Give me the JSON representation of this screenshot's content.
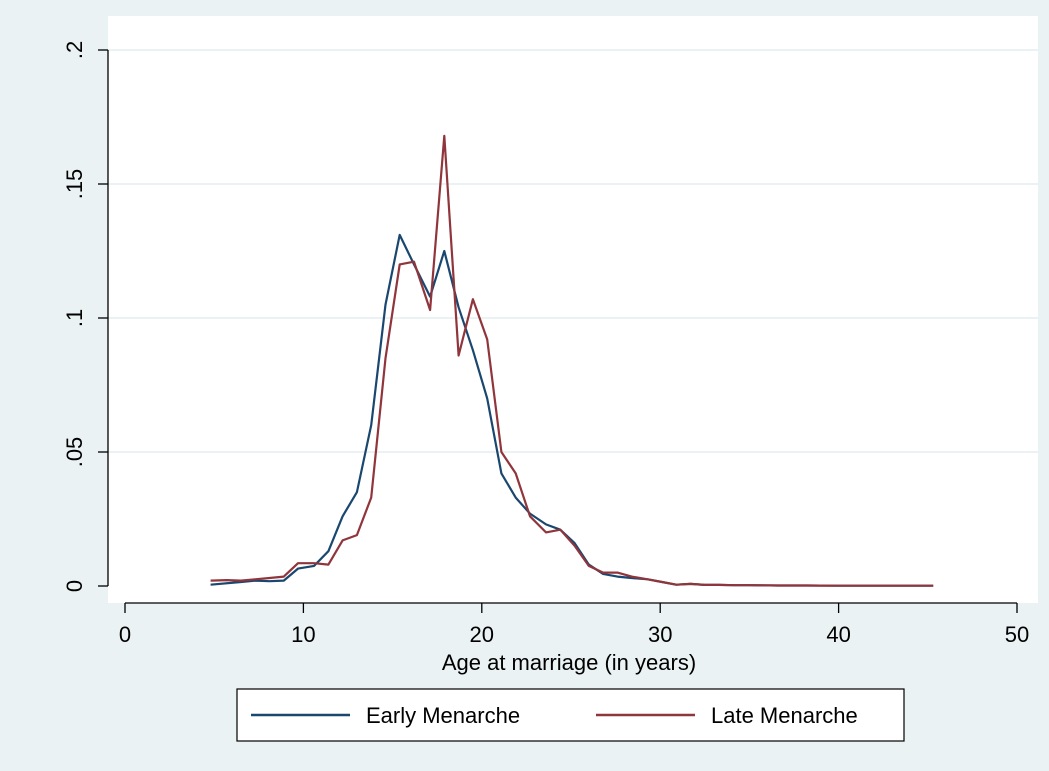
{
  "chart_data": {
    "type": "line",
    "xlabel": "Age at marriage (in years)",
    "ylabel": "",
    "xlim": [
      0,
      50
    ],
    "ylim": [
      0,
      0.2
    ],
    "x_ticks": [
      0,
      10,
      20,
      30,
      40,
      50
    ],
    "x_tick_labels": [
      "0",
      "10",
      "20",
      "30",
      "40",
      "50"
    ],
    "y_ticks": [
      0,
      0.05,
      0.1,
      0.15,
      0.2
    ],
    "y_tick_labels": [
      "0",
      ".05",
      ".1",
      ".15",
      ".2"
    ],
    "grid": "horizontal",
    "legend_position": "bottom",
    "series": [
      {
        "name": "Early Menarche",
        "color": "#1a476f",
        "x": [
          4.8,
          6.5,
          7.3,
          8.1,
          8.9,
          9.7,
          10.6,
          11.4,
          12.2,
          13.0,
          13.8,
          14.6,
          15.4,
          16.2,
          17.1,
          17.9,
          18.7,
          19.5,
          20.3,
          21.1,
          21.9,
          22.7,
          23.6,
          24.4,
          25.2,
          26.0,
          26.8,
          27.6,
          28.4,
          29.3,
          30.1,
          30.9,
          31.7,
          32.5,
          33.3,
          34.1,
          35.0,
          36.6,
          38.2,
          39.8,
          41.5,
          43.1,
          45.3
        ],
        "y": [
          0.0005,
          0.0015,
          0.002,
          0.0018,
          0.002,
          0.0065,
          0.0075,
          0.013,
          0.026,
          0.035,
          0.06,
          0.105,
          0.131,
          0.12,
          0.108,
          0.125,
          0.104,
          0.088,
          0.07,
          0.042,
          0.033,
          0.027,
          0.023,
          0.021,
          0.016,
          0.008,
          0.0045,
          0.0035,
          0.003,
          0.0025,
          0.0015,
          0.0005,
          0.0008,
          0.0004,
          0.0004,
          0.0003,
          0.0003,
          0.0002,
          0.0002,
          0.0001,
          0.0001,
          0.0001,
          0.0001
        ]
      },
      {
        "name": "Late Menarche",
        "color": "#90353b",
        "x": [
          4.8,
          5.7,
          6.5,
          7.3,
          8.1,
          8.9,
          9.7,
          10.6,
          11.4,
          12.2,
          13.0,
          13.8,
          14.6,
          15.4,
          16.2,
          17.1,
          17.9,
          18.7,
          19.5,
          20.3,
          21.1,
          21.9,
          22.7,
          23.6,
          24.4,
          25.2,
          26.0,
          26.8,
          27.6,
          28.4,
          29.3,
          30.1,
          30.9,
          31.7,
          32.5,
          33.3,
          34.1,
          35.0,
          36.6,
          38.2,
          39.8,
          41.5,
          43.1,
          45.3
        ],
        "y": [
          0.002,
          0.0022,
          0.002,
          0.0025,
          0.003,
          0.0035,
          0.0085,
          0.0085,
          0.008,
          0.017,
          0.019,
          0.033,
          0.085,
          0.12,
          0.121,
          0.103,
          0.168,
          0.086,
          0.107,
          0.092,
          0.05,
          0.042,
          0.026,
          0.02,
          0.021,
          0.015,
          0.0075,
          0.005,
          0.005,
          0.0035,
          0.0025,
          0.0015,
          0.0005,
          0.0008,
          0.0004,
          0.0004,
          0.0003,
          0.0003,
          0.0002,
          0.0002,
          0.0001,
          0.0001,
          0.0001,
          0.0001
        ]
      }
    ]
  }
}
